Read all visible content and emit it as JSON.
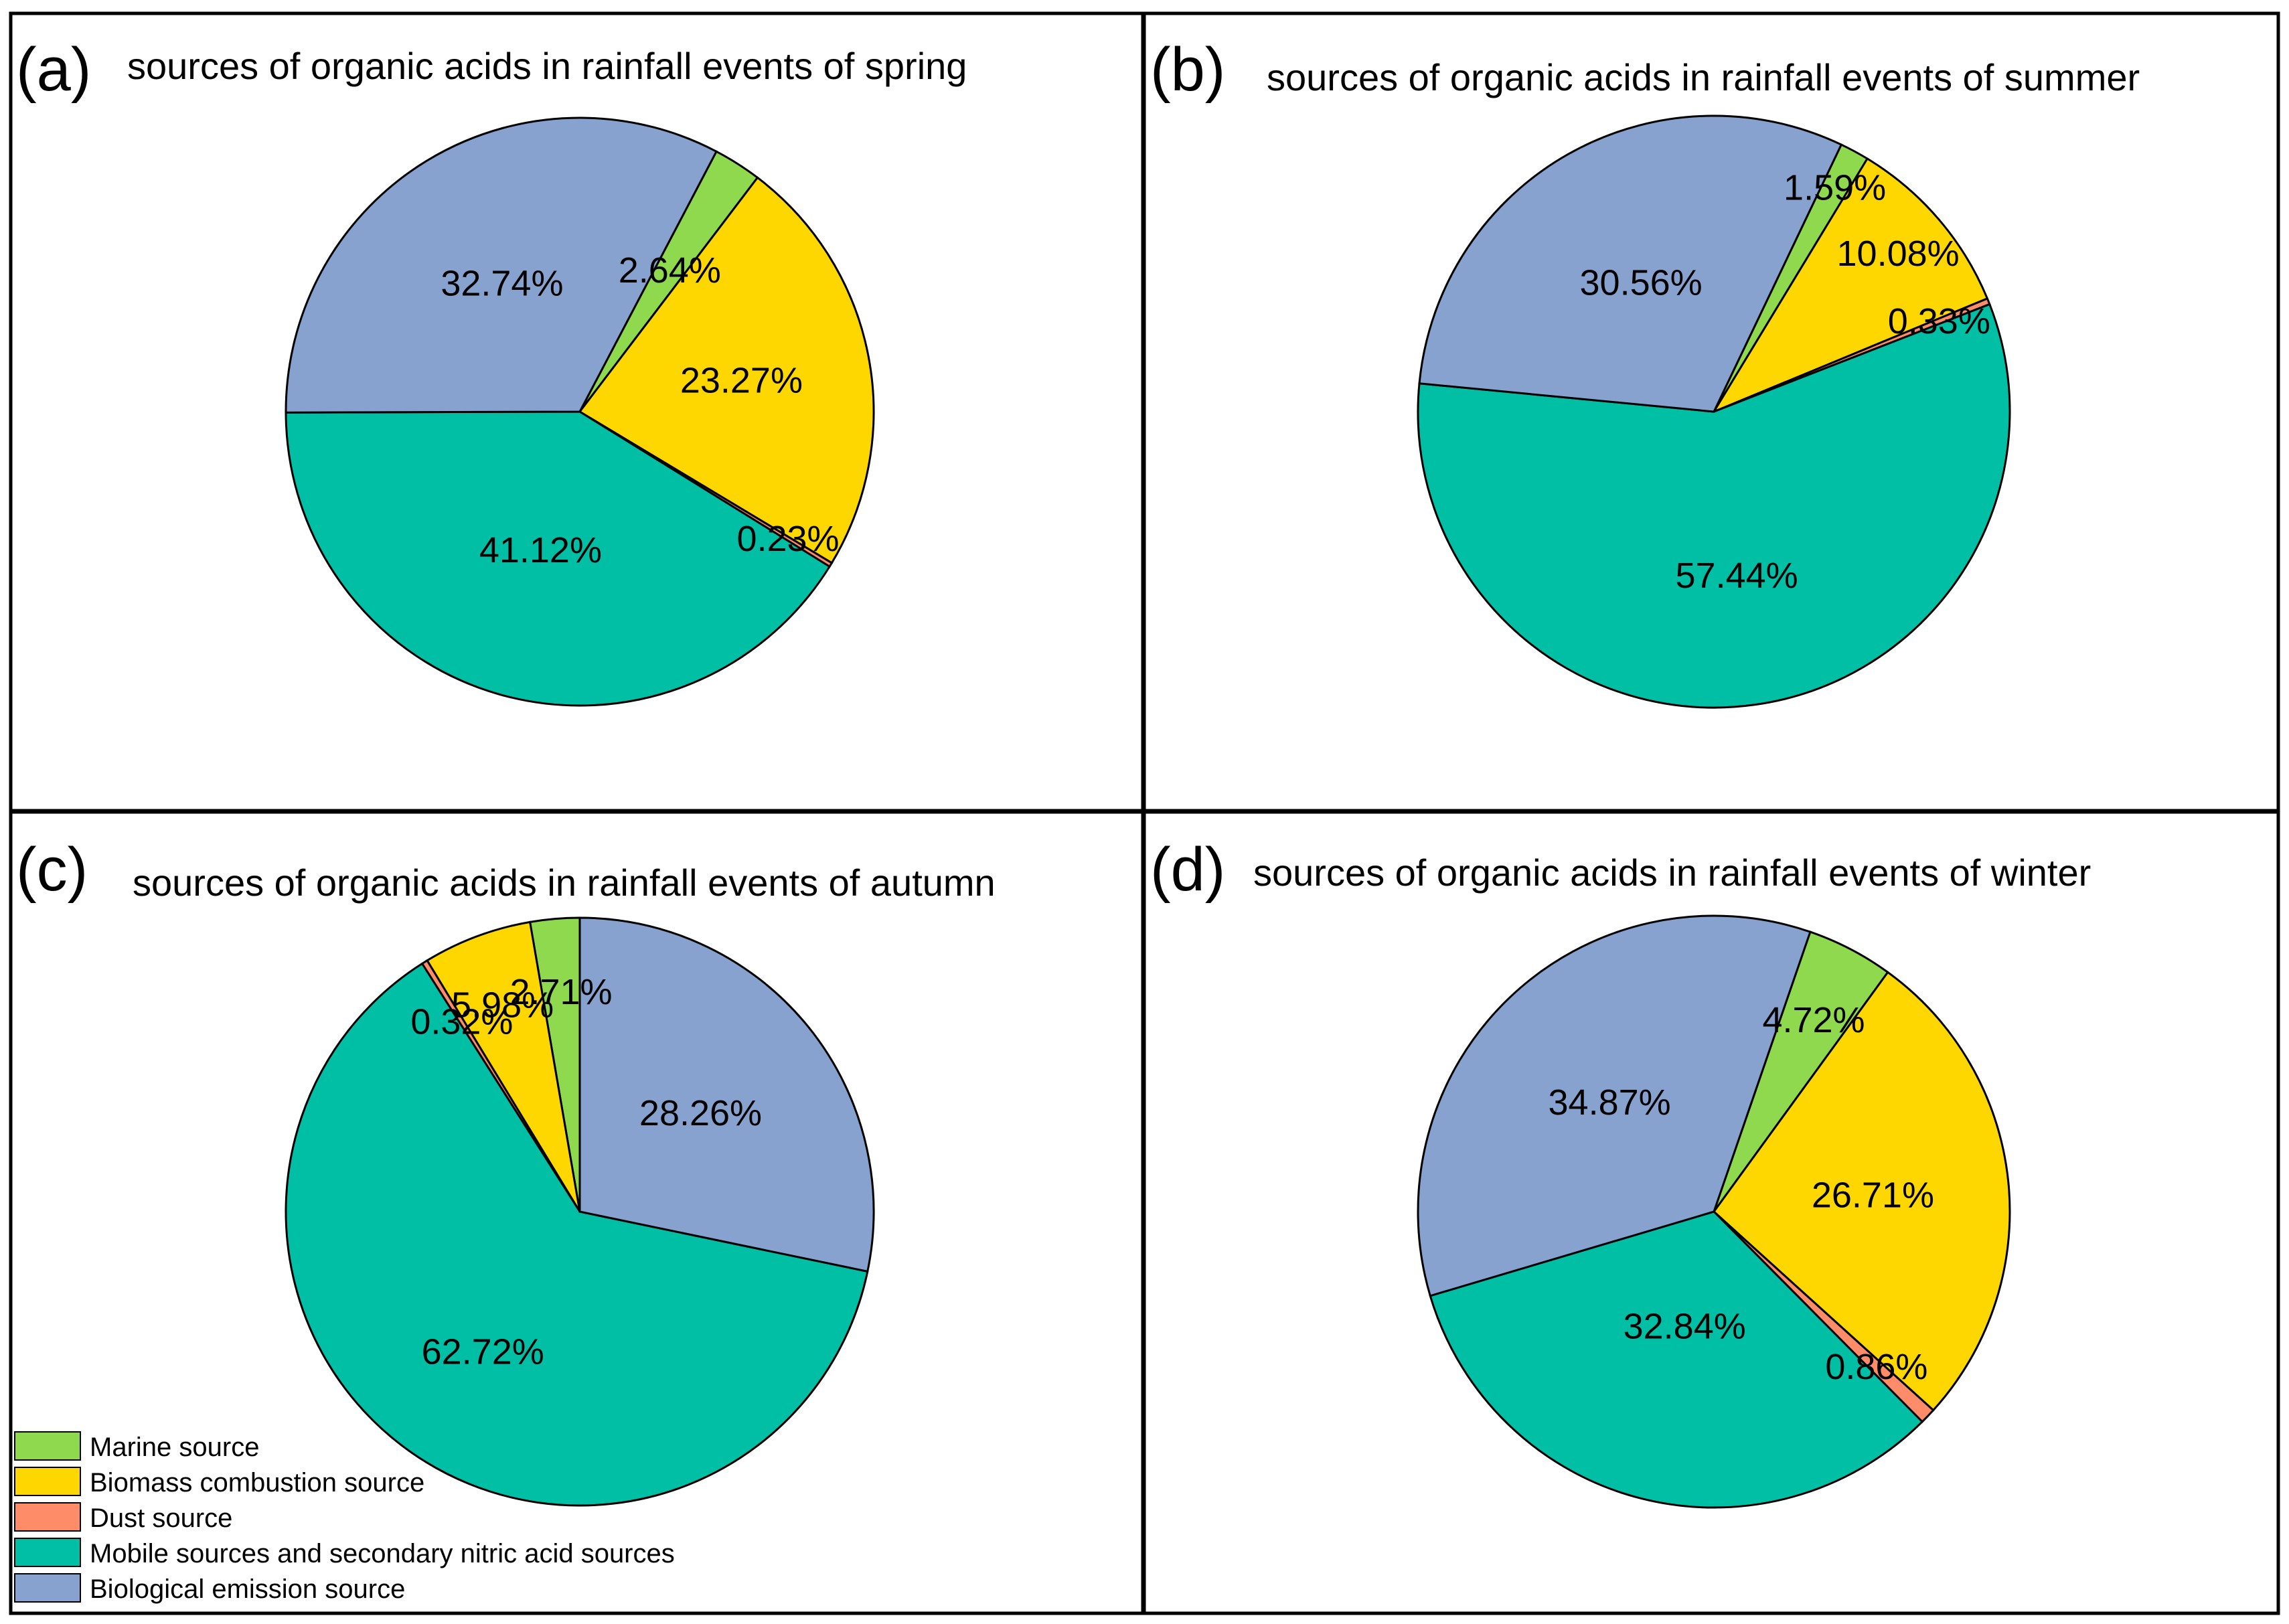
{
  "colors": {
    "marine": "#8FD94F",
    "biomass": "#FFD700",
    "dust": "#FF8C69",
    "mobile": "#00BFA5",
    "biological": "#87A2CF"
  },
  "legend": [
    {
      "key": "marine",
      "label": "Marine source"
    },
    {
      "key": "biomass",
      "label": "Biomass combustion source"
    },
    {
      "key": "dust",
      "label": "Dust source"
    },
    {
      "key": "mobile",
      "label": "Mobile sources and secondary nitric acid sources"
    },
    {
      "key": "biological",
      "label": "Biological emission source"
    }
  ],
  "chart_data": [
    {
      "type": "pie",
      "panel": "(a)",
      "title": "sources of organic acids in rainfall events of spring",
      "slices": [
        {
          "key": "marine",
          "value": 2.64,
          "label": "2.64%"
        },
        {
          "key": "biomass",
          "value": 23.27,
          "label": "23.27%"
        },
        {
          "key": "dust",
          "value": 0.23,
          "label": "0.23%"
        },
        {
          "key": "mobile",
          "value": 41.12,
          "label": "41.12%"
        },
        {
          "key": "biological",
          "value": 32.74,
          "label": "32.74%"
        }
      ]
    },
    {
      "type": "pie",
      "panel": "(b)",
      "title": "sources of organic acids in rainfall events of summer",
      "slices": [
        {
          "key": "marine",
          "value": 1.59,
          "label": "1.59%"
        },
        {
          "key": "biomass",
          "value": 10.08,
          "label": "10.08%"
        },
        {
          "key": "dust",
          "value": 0.33,
          "label": "0.33%"
        },
        {
          "key": "mobile",
          "value": 57.44,
          "label": "57.44%"
        },
        {
          "key": "biological",
          "value": 30.56,
          "label": "30.56%"
        }
      ]
    },
    {
      "type": "pie",
      "panel": "(c)",
      "title": "sources of organic acids in rainfall events of autumn",
      "slices": [
        {
          "key": "marine",
          "value": 2.71,
          "label": "2.71%"
        },
        {
          "key": "biomass",
          "value": 5.98,
          "label": "5.98%"
        },
        {
          "key": "dust",
          "value": 0.32,
          "label": "0.32%"
        },
        {
          "key": "mobile",
          "value": 62.72,
          "label": "62.72%"
        },
        {
          "key": "biological",
          "value": 28.26,
          "label": "28.26%"
        }
      ]
    },
    {
      "type": "pie",
      "panel": "(d)",
      "title": "sources of organic acids in rainfall events of winter",
      "slices": [
        {
          "key": "marine",
          "value": 4.72,
          "label": "4.72%"
        },
        {
          "key": "biomass",
          "value": 26.71,
          "label": "26.71%"
        },
        {
          "key": "dust",
          "value": 0.86,
          "label": "0.86%"
        },
        {
          "key": "mobile",
          "value": 32.84,
          "label": "32.84%"
        },
        {
          "key": "biological",
          "value": 34.87,
          "label": "34.87%"
        }
      ]
    }
  ]
}
